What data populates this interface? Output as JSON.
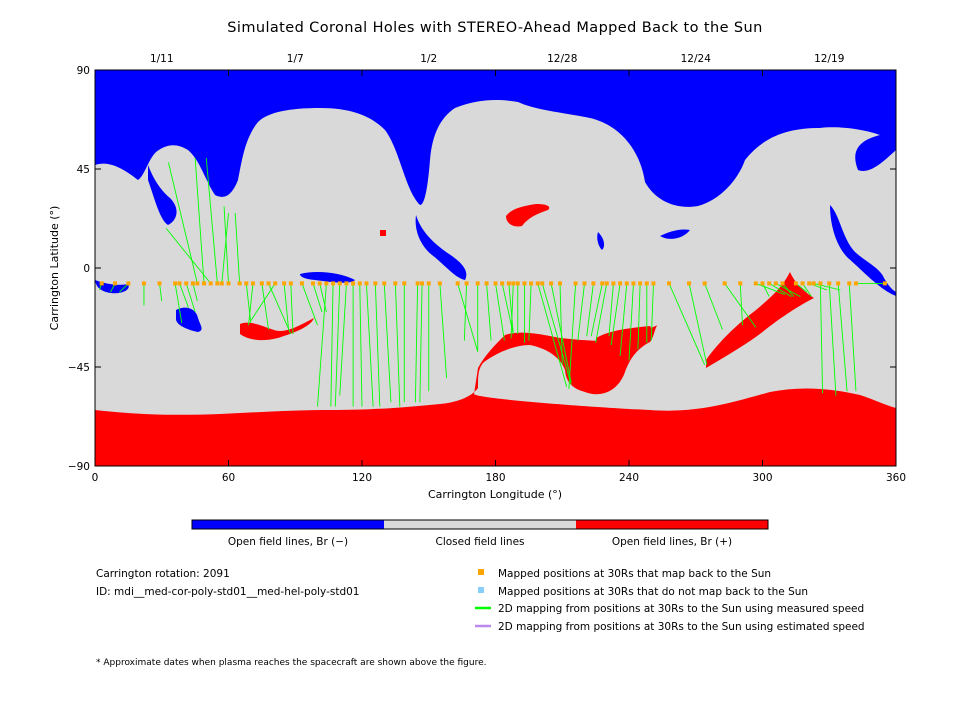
{
  "title": "Simulated Coronal Holes with STEREO-Ahead Mapped Back to the Sun",
  "chart_data": {
    "type": "map",
    "xlabel": "Carrington Longitude (°)",
    "ylabel": "Carrington Latitude (°)",
    "xlim": [
      0,
      360
    ],
    "ylim": [
      -90,
      90
    ],
    "x_ticks": [
      0,
      60,
      120,
      180,
      240,
      300,
      360
    ],
    "y_ticks": [
      {
        "value": 90,
        "label": "90"
      },
      {
        "value": 45,
        "label": "45"
      },
      {
        "value": 0,
        "label": "0"
      },
      {
        "value": -45,
        "label": "−45"
      },
      {
        "value": -90,
        "label": "−90"
      }
    ],
    "top_date_ticks": [
      {
        "lon": 30,
        "label": "1/11"
      },
      {
        "lon": 90,
        "label": "1/7"
      },
      {
        "lon": 150,
        "label": "1/2"
      },
      {
        "lon": 210,
        "label": "12/28"
      },
      {
        "lon": 270,
        "label": "12/24"
      },
      {
        "lon": 330,
        "label": "12/19"
      }
    ],
    "colors": {
      "open_negative": "#0000ff",
      "closed": "#d9d9d9",
      "open_positive": "#ff0000",
      "mapped_point": "#ffa500",
      "unmapped_point": "#87cefa",
      "measured_line": "#00ff00",
      "estimated_line": "#bb88ee"
    },
    "colorbar": [
      {
        "label": "Open field lines, Br (−)",
        "color": "#0000ff"
      },
      {
        "label": "Closed field lines",
        "color": "#d9d9d9"
      },
      {
        "label": "Open field lines, Br (+)",
        "color": "#ff0000"
      }
    ],
    "mapping": [
      {
        "x": 3,
        "y": -7,
        "lon": 2,
        "lat": -10
      },
      {
        "x": 9,
        "y": -7,
        "lon": 7,
        "lat": -11
      },
      {
        "x": 15,
        "y": -7,
        "lon": 11,
        "lat": -11
      },
      {
        "x": 22,
        "y": -7,
        "lon": 22,
        "lat": -17
      },
      {
        "x": 29,
        "y": -7,
        "lon": 30,
        "lat": -15
      },
      {
        "x": 36,
        "y": -7,
        "lon": 39,
        "lat": -25
      },
      {
        "x": 38,
        "y": -7,
        "lon": 42,
        "lat": -18
      },
      {
        "x": 41,
        "y": -7,
        "lon": 45,
        "lat": -20
      },
      {
        "x": 44,
        "y": -7,
        "lon": 46,
        "lat": -15
      },
      {
        "x": 46,
        "y": -7,
        "lon": 33,
        "lat": 48
      },
      {
        "x": 49,
        "y": -7,
        "lon": 45,
        "lat": 50
      },
      {
        "x": 52,
        "y": -7,
        "lon": 32,
        "lat": 18
      },
      {
        "x": 55,
        "y": -7,
        "lon": 50,
        "lat": 50
      },
      {
        "x": 57,
        "y": -7,
        "lon": 60,
        "lat": 25
      },
      {
        "x": 60,
        "y": -7,
        "lon": 58,
        "lat": 28
      },
      {
        "x": 65,
        "y": -7,
        "lon": 63,
        "lat": 25
      },
      {
        "x": 68,
        "y": -7,
        "lon": 70,
        "lat": -25
      },
      {
        "x": 71,
        "y": -7,
        "lon": 69,
        "lat": -26
      },
      {
        "x": 75,
        "y": -7,
        "lon": 78,
        "lat": -28
      },
      {
        "x": 78,
        "y": -7,
        "lon": 88,
        "lat": -30
      },
      {
        "x": 81,
        "y": -7,
        "lon": 70,
        "lat": -24
      },
      {
        "x": 85,
        "y": -7,
        "lon": 87,
        "lat": -28
      },
      {
        "x": 88,
        "y": -7,
        "lon": 89,
        "lat": -30
      },
      {
        "x": 93,
        "y": -7,
        "lon": 100,
        "lat": -26
      },
      {
        "x": 98,
        "y": -7,
        "lon": 102,
        "lat": -20
      },
      {
        "x": 101,
        "y": -7,
        "lon": 104,
        "lat": -20
      },
      {
        "x": 104,
        "y": -7,
        "lon": 100,
        "lat": -63
      },
      {
        "x": 107,
        "y": -7,
        "lon": 106,
        "lat": -63
      },
      {
        "x": 110,
        "y": -7,
        "lon": 108,
        "lat": -63
      },
      {
        "x": 113,
        "y": -7,
        "lon": 110,
        "lat": -58
      },
      {
        "x": 116,
        "y": -7,
        "lon": 116,
        "lat": -63
      },
      {
        "x": 119,
        "y": -7,
        "lon": 120,
        "lat": -63
      },
      {
        "x": 122,
        "y": -7,
        "lon": 125,
        "lat": -63
      },
      {
        "x": 126,
        "y": -7,
        "lon": 128,
        "lat": -63
      },
      {
        "x": 130,
        "y": -7,
        "lon": 133,
        "lat": -61
      },
      {
        "x": 135,
        "y": -7,
        "lon": 137,
        "lat": -63
      },
      {
        "x": 139,
        "y": -7,
        "lon": 139,
        "lat": -61
      },
      {
        "x": 145,
        "y": -7,
        "lon": 144,
        "lat": -61
      },
      {
        "x": 147,
        "y": -7,
        "lon": 146,
        "lat": -61
      },
      {
        "x": 150,
        "y": -7,
        "lon": 150,
        "lat": -56
      },
      {
        "x": 155,
        "y": -7,
        "lon": 158,
        "lat": -50
      },
      {
        "x": 163,
        "y": -7,
        "lon": 172,
        "lat": -38
      },
      {
        "x": 167,
        "y": -7,
        "lon": 166,
        "lat": -33
      },
      {
        "x": 172,
        "y": -7,
        "lon": 172,
        "lat": -38
      },
      {
        "x": 176,
        "y": -7,
        "lon": 178,
        "lat": -33
      },
      {
        "x": 180,
        "y": -7,
        "lon": 184,
        "lat": -33
      },
      {
        "x": 183,
        "y": -7,
        "lon": 188,
        "lat": -30
      },
      {
        "x": 186,
        "y": -7,
        "lon": 188,
        "lat": -30
      },
      {
        "x": 188,
        "y": -7,
        "lon": 187,
        "lat": -32
      },
      {
        "x": 190,
        "y": -7,
        "lon": 190,
        "lat": -30
      },
      {
        "x": 193,
        "y": -7,
        "lon": 193,
        "lat": -34
      },
      {
        "x": 196,
        "y": -7,
        "lon": 195,
        "lat": -33
      },
      {
        "x": 199,
        "y": -7,
        "lon": 212,
        "lat": -54
      },
      {
        "x": 201,
        "y": -7,
        "lon": 214,
        "lat": -53
      },
      {
        "x": 205,
        "y": -7,
        "lon": 214,
        "lat": -52
      },
      {
        "x": 209,
        "y": -7,
        "lon": 210,
        "lat": -44
      },
      {
        "x": 216,
        "y": -7,
        "lon": 213,
        "lat": -55
      },
      {
        "x": 220,
        "y": -7,
        "lon": 217,
        "lat": -33
      },
      {
        "x": 224,
        "y": -7,
        "lon": 221,
        "lat": -31
      },
      {
        "x": 228,
        "y": -7,
        "lon": 223,
        "lat": -31
      },
      {
        "x": 230,
        "y": -7,
        "lon": 225,
        "lat": -34
      },
      {
        "x": 233,
        "y": -7,
        "lon": 231,
        "lat": -31
      },
      {
        "x": 236,
        "y": -7,
        "lon": 232,
        "lat": -35
      },
      {
        "x": 239,
        "y": -7,
        "lon": 236,
        "lat": -40
      },
      {
        "x": 242,
        "y": -7,
        "lon": 240,
        "lat": -42
      },
      {
        "x": 245,
        "y": -7,
        "lon": 244,
        "lat": -37
      },
      {
        "x": 248,
        "y": -7,
        "lon": 248,
        "lat": -34
      },
      {
        "x": 251,
        "y": -7,
        "lon": 250,
        "lat": -33
      },
      {
        "x": 258,
        "y": -7,
        "lon": 274,
        "lat": -44
      },
      {
        "x": 267,
        "y": -7,
        "lon": 275,
        "lat": -44
      },
      {
        "x": 274,
        "y": -7,
        "lon": 282,
        "lat": -28
      },
      {
        "x": 283,
        "y": -7,
        "lon": 297,
        "lat": -27
      },
      {
        "x": 290,
        "y": -7,
        "lon": 291,
        "lat": -26
      },
      {
        "x": 297,
        "y": -7,
        "lon": 310,
        "lat": -12
      },
      {
        "x": 300,
        "y": -7,
        "lon": 303,
        "lat": -13
      },
      {
        "x": 303,
        "y": -7,
        "lon": 313,
        "lat": -13
      },
      {
        "x": 306,
        "y": -7,
        "lon": 317,
        "lat": -13
      },
      {
        "x": 309,
        "y": -7,
        "lon": 314,
        "lat": -13
      },
      {
        "x": 315,
        "y": -7,
        "lon": 320,
        "lat": -11
      },
      {
        "x": 318,
        "y": -7,
        "lon": 322,
        "lat": -13
      },
      {
        "x": 321,
        "y": -7,
        "lon": 329,
        "lat": -10
      },
      {
        "x": 323,
        "y": -7,
        "lon": 335,
        "lat": -10
      },
      {
        "x": 326,
        "y": -7,
        "lon": 327,
        "lat": -57
      },
      {
        "x": 330,
        "y": -7,
        "lon": 333,
        "lat": -58
      },
      {
        "x": 334,
        "y": -7,
        "lon": 338,
        "lat": -56
      },
      {
        "x": 339,
        "y": -7,
        "lon": 342,
        "lat": -56
      },
      {
        "x": 342,
        "y": -7,
        "lon": 355,
        "lat": -7
      },
      {
        "x": 355,
        "y": -7,
        "lon": 356,
        "lat": -7
      }
    ]
  },
  "info": {
    "rotation": "Carrington rotation: 2091",
    "id": "ID: mdi__med-cor-poly-std01__med-hel-poly-std01"
  },
  "legend": [
    {
      "kind": "square",
      "color": "#ffa500",
      "label": "Mapped positions at 30Rs that map back to the Sun"
    },
    {
      "kind": "square",
      "color": "#87cefa",
      "label": "Mapped positions at 30Rs that do not map back to the Sun"
    },
    {
      "kind": "line",
      "color": "#00ff00",
      "label": "2D mapping from positions at 30Rs to the Sun using measured speed"
    },
    {
      "kind": "line",
      "color": "#bb88ee",
      "label": "2D mapping from positions at 30Rs to the Sun using estimated speed"
    }
  ],
  "footnote": "* Approximate dates when plasma reaches the spacecraft are shown above the figure."
}
